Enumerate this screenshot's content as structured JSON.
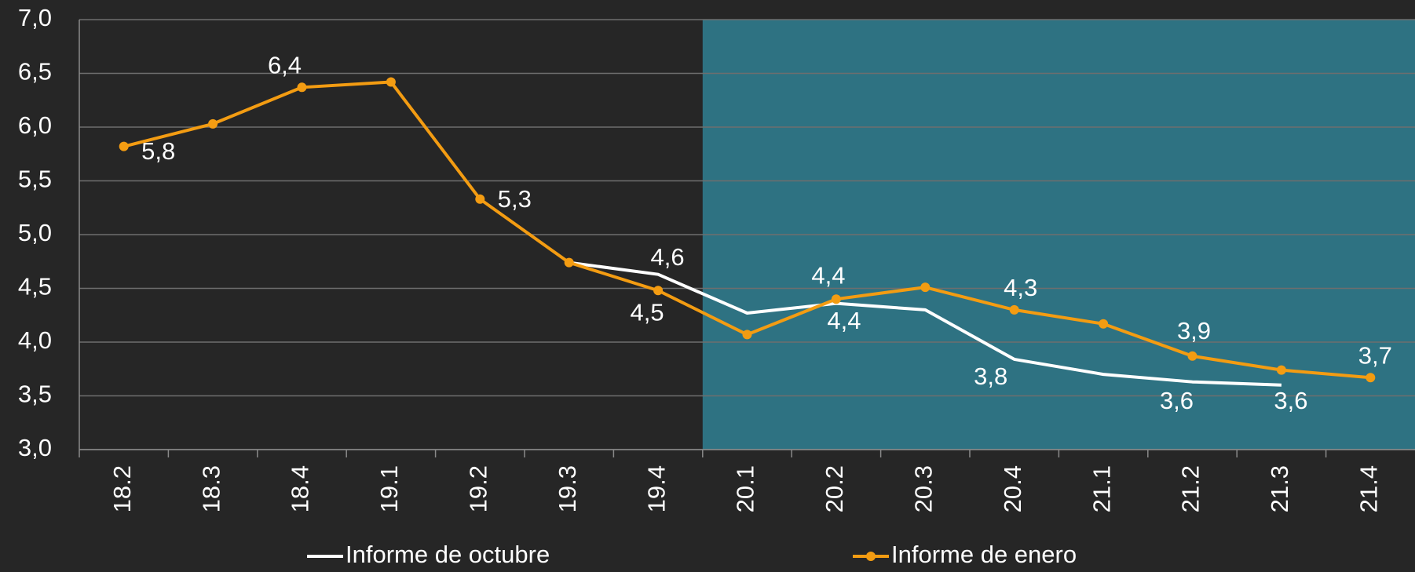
{
  "chart_data": {
    "type": "line",
    "categories": [
      "18.2",
      "18.3",
      "18.4",
      "19.1",
      "19.2",
      "19.3",
      "19.4",
      "20.1",
      "20.2",
      "20.3",
      "20.4",
      "21.1",
      "21.2",
      "21.3",
      "21.4"
    ],
    "series": [
      {
        "name": "Informe de octubre",
        "color": "#ffffff",
        "markers": false,
        "values": [
          null,
          null,
          null,
          null,
          null,
          4.74,
          4.63,
          4.27,
          4.36,
          4.3,
          3.84,
          3.7,
          3.63,
          3.6,
          null
        ],
        "value_labels": [
          null,
          null,
          null,
          null,
          null,
          null,
          "4,6",
          null,
          "4,4",
          null,
          "3,8",
          null,
          "3,6",
          "3,6",
          null
        ]
      },
      {
        "name": "Informe de enero",
        "color": "#f39c12",
        "markers": true,
        "values": [
          5.82,
          6.03,
          6.37,
          6.42,
          5.33,
          4.74,
          4.48,
          4.07,
          4.4,
          4.51,
          4.3,
          4.17,
          3.87,
          3.74,
          3.67
        ],
        "value_labels": [
          "5,8",
          null,
          "6,4",
          null,
          "5,3",
          null,
          "4,5",
          null,
          "4,4",
          null,
          "4,3",
          null,
          "3,9",
          null,
          "3,7"
        ]
      }
    ],
    "ylim": [
      3,
      7
    ],
    "yticks": [
      {
        "value": 3,
        "label": "3,0"
      },
      {
        "value": 3.5,
        "label": "3,5"
      },
      {
        "value": 4,
        "label": "4,0"
      },
      {
        "value": 4.5,
        "label": "4,5"
      },
      {
        "value": 5,
        "label": "5,0"
      },
      {
        "value": 5.5,
        "label": "5,5"
      },
      {
        "value": 6,
        "label": "6,0"
      },
      {
        "value": 6.5,
        "label": "6,5"
      },
      {
        "value": 7,
        "label": "7,0"
      }
    ],
    "grid": true,
    "legend": "bottom"
  }
}
